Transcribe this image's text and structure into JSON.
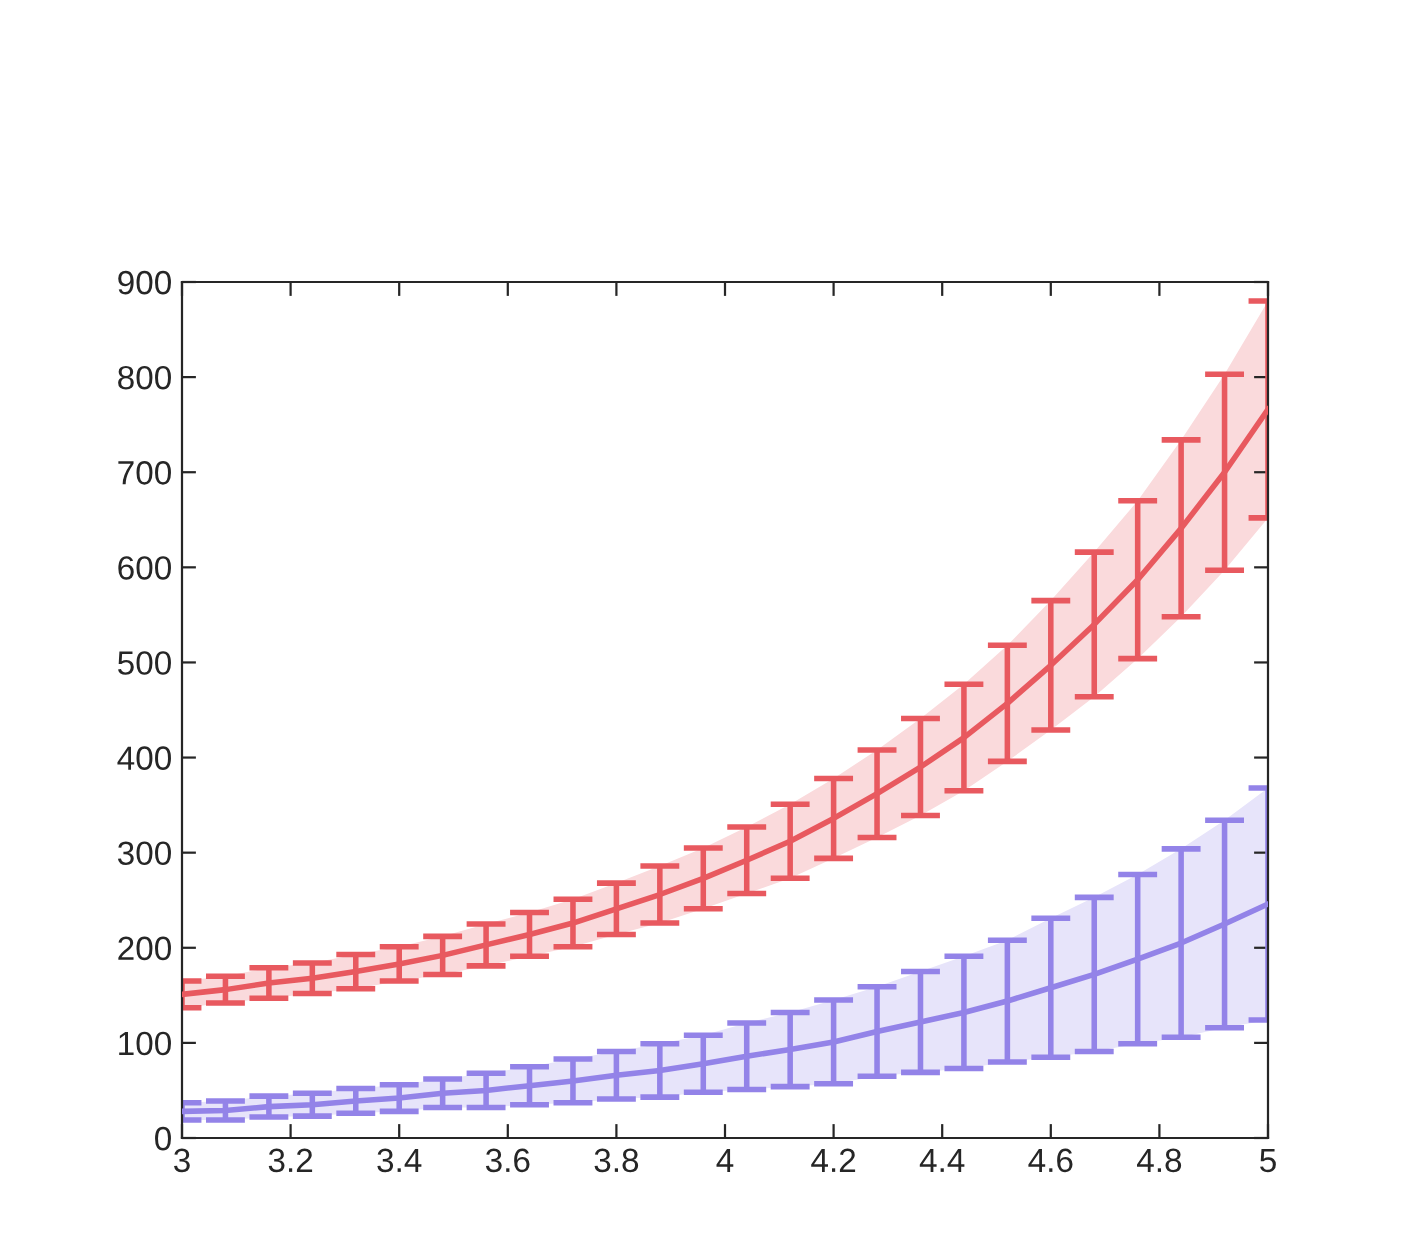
{
  "chart_data": {
    "type": "line",
    "x": [
      3,
      3.08,
      3.16,
      3.24,
      3.32,
      3.4,
      3.48,
      3.56,
      3.64,
      3.72,
      3.8,
      3.88,
      3.96,
      4.04,
      4.12,
      4.2,
      4.28,
      4.36,
      4.44,
      4.52,
      4.6,
      4.68,
      4.76,
      4.84,
      4.92,
      5
    ],
    "series": [
      {
        "color": "#e8595f",
        "values": [
          151,
          156,
          163,
          168,
          175,
          183,
          192,
          203,
          214,
          226,
          241,
          256,
          273,
          292,
          312,
          336,
          362,
          390,
          421,
          457,
          497,
          540,
          587,
          641,
          700,
          766
        ],
        "errors": [
          14,
          14,
          16,
          16,
          18,
          18,
          20,
          22,
          23,
          25,
          27,
          30,
          32,
          35,
          39,
          42,
          46,
          51,
          56,
          61,
          68,
          76,
          83,
          93,
          103,
          114
        ],
        "lower": [
          137,
          142,
          147,
          152,
          157,
          165,
          172,
          181,
          191,
          201,
          214,
          226,
          241,
          257,
          273,
          294,
          316,
          339,
          365,
          396,
          429,
          464,
          504,
          548,
          597,
          652
        ],
        "upper": [
          165,
          170,
          179,
          184,
          193,
          201,
          212,
          225,
          237,
          251,
          268,
          286,
          305,
          327,
          351,
          378,
          408,
          441,
          477,
          518,
          565,
          616,
          670,
          734,
          803,
          880
        ]
      },
      {
        "color": "#9383e8",
        "values": [
          28,
          29,
          33,
          35,
          39,
          42,
          47,
          50,
          55,
          60,
          66,
          71,
          78,
          86,
          93,
          101,
          112,
          122,
          132,
          144,
          158,
          172,
          188,
          205,
          225,
          246
        ],
        "errors": [
          9,
          10,
          11,
          12,
          13,
          14,
          15,
          18,
          20,
          23,
          25,
          28,
          30,
          35,
          39,
          44,
          47,
          53,
          59,
          64,
          73,
          81,
          89,
          99,
          109,
          122
        ],
        "lower": [
          19,
          19,
          22,
          23,
          26,
          28,
          32,
          32,
          35,
          37,
          41,
          43,
          48,
          51,
          54,
          57,
          65,
          69,
          73,
          80,
          85,
          91,
          99,
          106,
          116,
          124
        ],
        "upper": [
          37,
          39,
          44,
          47,
          52,
          56,
          62,
          68,
          75,
          83,
          91,
          99,
          108,
          121,
          132,
          145,
          159,
          175,
          191,
          208,
          231,
          253,
          277,
          304,
          334,
          368
        ]
      }
    ],
    "xlim": [
      3,
      5
    ],
    "xticks": [
      3,
      3.2,
      3.4,
      3.6,
      3.8,
      4,
      4.2,
      4.4,
      4.6,
      4.8,
      5
    ],
    "ylim": [
      0,
      900
    ],
    "yticks": [
      0,
      100,
      200,
      300,
      400,
      500,
      600,
      700,
      800,
      900
    ],
    "marker": "none",
    "line_style": "solid"
  }
}
